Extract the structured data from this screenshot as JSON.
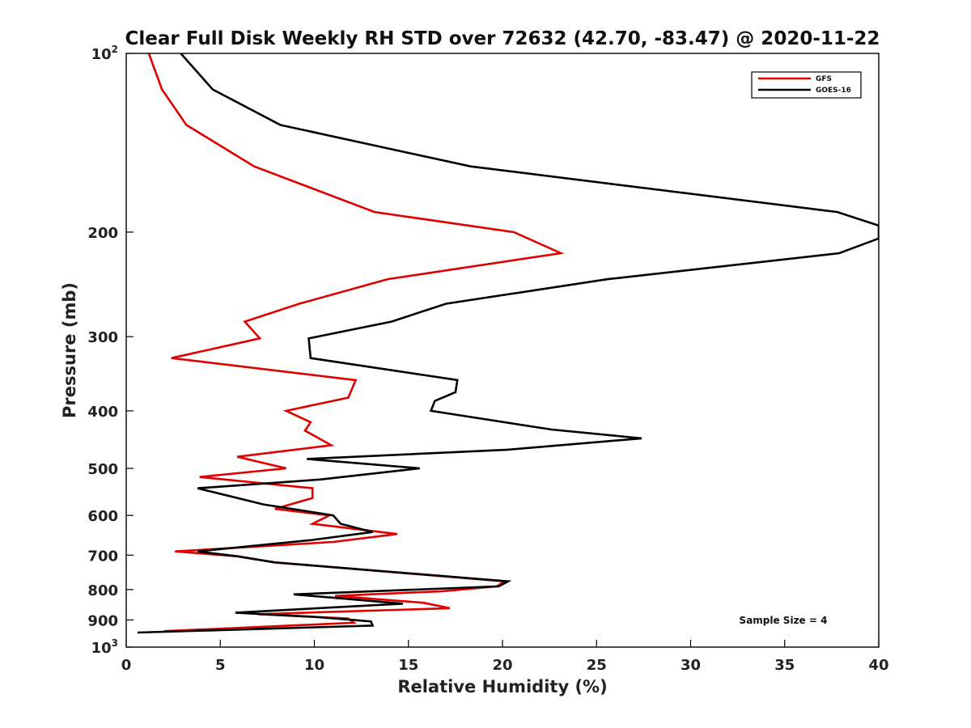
{
  "chart_data": {
    "type": "line",
    "title": "Clear Full Disk Weekly RH STD over 72632 (42.70, -83.47) @ 2020-11-22",
    "xlabel": "Relative Humidity (%)",
    "ylabel": "Pressure (mb)",
    "xlim": [
      0,
      40
    ],
    "ylim": [
      100,
      1000
    ],
    "y_scale": "log",
    "y_reversed": true,
    "grid": false,
    "legend_position": "top-right",
    "x_ticks": [
      {
        "value": 0,
        "label": "0"
      },
      {
        "value": 5,
        "label": "5"
      },
      {
        "value": 10,
        "label": "10"
      },
      {
        "value": 15,
        "label": "15"
      },
      {
        "value": 20,
        "label": "20"
      },
      {
        "value": 25,
        "label": "25"
      },
      {
        "value": 30,
        "label": "30"
      },
      {
        "value": 35,
        "label": "35"
      },
      {
        "value": 40,
        "label": "40"
      }
    ],
    "y_ticks": [
      {
        "value": 100,
        "base": "10",
        "exp": "2"
      },
      {
        "value": 200,
        "base": "200",
        "exp": ""
      },
      {
        "value": 300,
        "base": "300",
        "exp": ""
      },
      {
        "value": 400,
        "base": "400",
        "exp": ""
      },
      {
        "value": 500,
        "base": "500",
        "exp": ""
      },
      {
        "value": 600,
        "base": "600",
        "exp": ""
      },
      {
        "value": 700,
        "base": "700",
        "exp": ""
      },
      {
        "value": 800,
        "base": "800",
        "exp": ""
      },
      {
        "value": 900,
        "base": "900",
        "exp": ""
      },
      {
        "value": 1000,
        "base": "10",
        "exp": "3"
      }
    ],
    "series": [
      {
        "name": "GFS",
        "color": "#e00000",
        "points": [
          [
            1.2,
            100
          ],
          [
            1.9,
            115
          ],
          [
            3.2,
            132
          ],
          [
            6.8,
            155
          ],
          [
            13.2,
            185
          ],
          [
            20.6,
            200
          ],
          [
            23.1,
            217
          ],
          [
            13.9,
            240
          ],
          [
            9.2,
            264
          ],
          [
            6.3,
            283
          ],
          [
            7.1,
            302
          ],
          [
            2.4,
            326
          ],
          [
            12.2,
            355
          ],
          [
            11.8,
            380
          ],
          [
            8.5,
            400
          ],
          [
            9.8,
            418
          ],
          [
            9.5,
            432
          ],
          [
            10.9,
            457
          ],
          [
            5.9,
            478
          ],
          [
            8.5,
            500
          ],
          [
            3.9,
            517
          ],
          [
            9.9,
            540
          ],
          [
            9.9,
            561
          ],
          [
            7.9,
            585
          ],
          [
            10.8,
            600
          ],
          [
            9.9,
            620
          ],
          [
            14.4,
            645
          ],
          [
            11.0,
            665
          ],
          [
            2.6,
            690
          ],
          [
            5.9,
            703
          ],
          [
            7.9,
            720
          ],
          [
            20.1,
            775
          ],
          [
            19.7,
            790
          ],
          [
            16.8,
            805
          ],
          [
            11.1,
            820
          ],
          [
            15.8,
            842
          ],
          [
            17.2,
            860
          ],
          [
            7.0,
            880
          ],
          [
            11.8,
            895
          ],
          [
            12.1,
            910
          ],
          [
            2.0,
            940
          ]
        ]
      },
      {
        "name": "GOES-16",
        "color": "#000000",
        "points": [
          [
            2.9,
            100
          ],
          [
            4.6,
            115
          ],
          [
            8.2,
            132
          ],
          [
            18.3,
            155
          ],
          [
            37.8,
            185
          ],
          [
            40.0,
            195
          ],
          [
            40.0,
            205
          ],
          [
            37.9,
            217
          ],
          [
            25.6,
            240
          ],
          [
            17.0,
            264
          ],
          [
            14.1,
            283
          ],
          [
            9.7,
            302
          ],
          [
            9.8,
            326
          ],
          [
            17.6,
            355
          ],
          [
            17.5,
            372
          ],
          [
            16.4,
            385
          ],
          [
            16.2,
            400
          ],
          [
            22.6,
            430
          ],
          [
            27.4,
            445
          ],
          [
            20.3,
            465
          ],
          [
            9.6,
            482
          ],
          [
            15.6,
            500
          ],
          [
            10.3,
            522
          ],
          [
            3.8,
            540
          ],
          [
            7.3,
            575
          ],
          [
            11.0,
            600
          ],
          [
            11.4,
            620
          ],
          [
            13.1,
            640
          ],
          [
            9.9,
            660
          ],
          [
            3.8,
            690
          ],
          [
            5.9,
            703
          ],
          [
            7.9,
            720
          ],
          [
            20.3,
            775
          ],
          [
            19.8,
            790
          ],
          [
            8.9,
            815
          ],
          [
            14.7,
            845
          ],
          [
            5.8,
            875
          ],
          [
            10.2,
            890
          ],
          [
            13.0,
            905
          ],
          [
            13.1,
            920
          ],
          [
            0.6,
            945
          ]
        ]
      }
    ],
    "annotation": "Sample Size = 4"
  }
}
